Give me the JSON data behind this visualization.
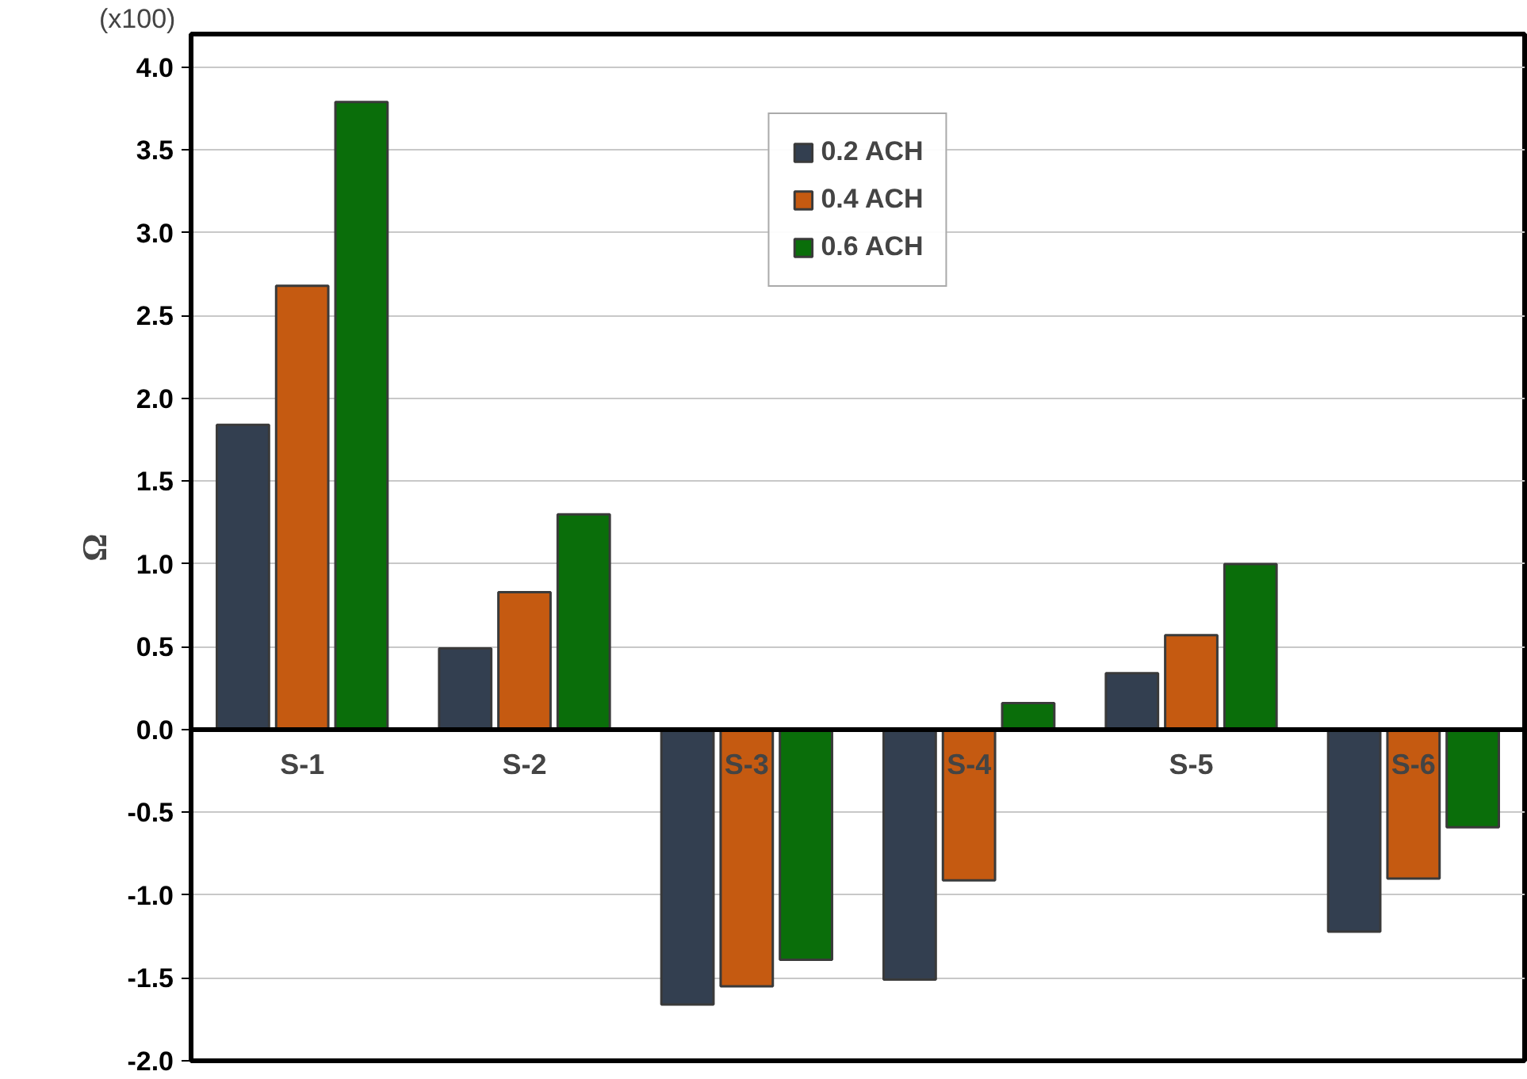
{
  "chart_data": {
    "type": "bar",
    "ylabel": "Ω",
    "annotations": [
      "(x100)"
    ],
    "categories": [
      "S-1",
      "S-2",
      "S-3",
      "S-4",
      "S-5",
      "S-6"
    ],
    "series": [
      {
        "name": "0.2 ACH",
        "color": "#333f50",
        "values": [
          1.84,
          0.49,
          -1.66,
          -1.51,
          0.34,
          -1.22
        ]
      },
      {
        "name": "0.4 ACH",
        "color": "#c55a11",
        "values": [
          2.68,
          0.83,
          -1.55,
          -0.91,
          0.57,
          -0.9
        ]
      },
      {
        "name": "0.6 ACH",
        "color": "#0a6e0a",
        "values": [
          3.79,
          1.3,
          -1.39,
          0.16,
          1.0,
          -0.59
        ]
      }
    ],
    "ylim": [
      -2.0,
      4.2
    ],
    "yticks": [
      {
        "value": -2,
        "label": "-2.0"
      },
      {
        "value": -1.5,
        "label": "-1.5"
      },
      {
        "value": -1,
        "label": "-1.0"
      },
      {
        "value": -0.5,
        "label": "-0.5"
      },
      {
        "value": 0,
        "label": "0.0"
      },
      {
        "value": 0.5,
        "label": "0.5"
      },
      {
        "value": 1,
        "label": "1.0"
      },
      {
        "value": 1.5,
        "label": "1.5"
      },
      {
        "value": 2,
        "label": "2.0"
      },
      {
        "value": 2.5,
        "label": "2.5"
      },
      {
        "value": 3,
        "label": "3.0"
      },
      {
        "value": 3.5,
        "label": "3.5"
      },
      {
        "value": 4,
        "label": "4.0"
      }
    ],
    "grid": "y",
    "legend": "top"
  }
}
